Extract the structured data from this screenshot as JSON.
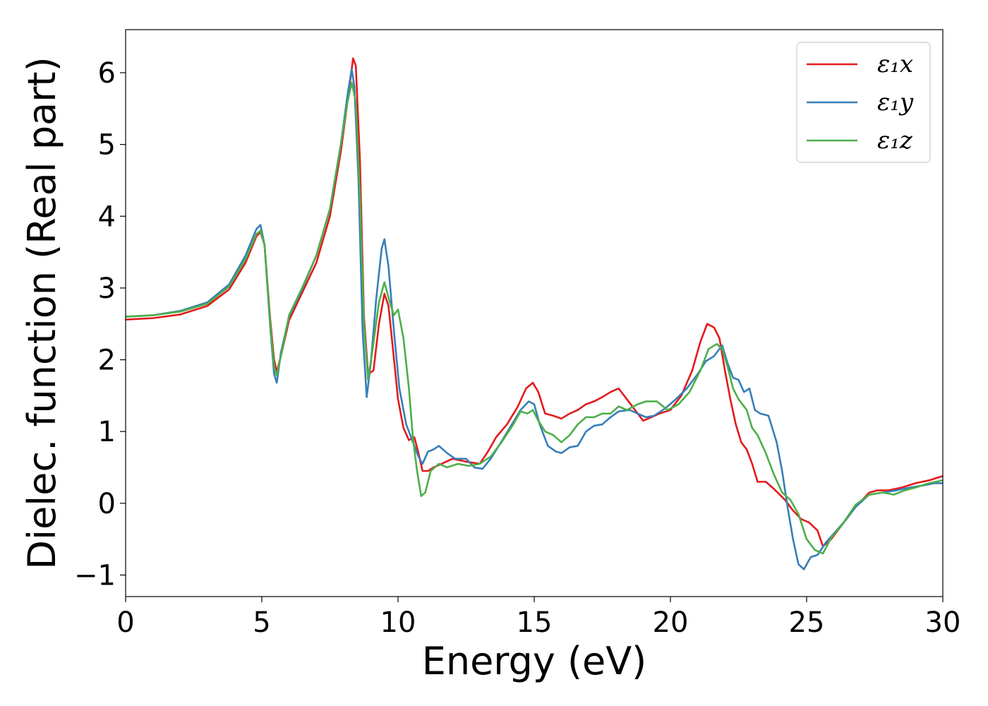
{
  "chart_data": {
    "type": "line",
    "xlabel": "Energy (eV)",
    "ylabel": "Dielec. function (Real part)",
    "xlim": [
      0,
      30
    ],
    "ylim": [
      -1.3,
      6.6
    ],
    "xticks": [
      0,
      5,
      10,
      15,
      20,
      25,
      30
    ],
    "xtick_labels": [
      "0",
      "5",
      "10",
      "15",
      "20",
      "25",
      "30"
    ],
    "yticks": [
      -1,
      0,
      1,
      2,
      3,
      4,
      5,
      6
    ],
    "ytick_labels": [
      "−1",
      "0",
      "1",
      "2",
      "3",
      "4",
      "5",
      "6"
    ],
    "grid": false,
    "legend_position": "top-right",
    "series": [
      {
        "name": "ε₁x",
        "color": "#e41a1c",
        "points": [
          [
            0,
            2.56
          ],
          [
            1,
            2.58
          ],
          [
            2,
            2.63
          ],
          [
            3,
            2.75
          ],
          [
            3.8,
            2.98
          ],
          [
            4.4,
            3.35
          ],
          [
            4.8,
            3.72
          ],
          [
            4.95,
            3.78
          ],
          [
            5.1,
            3.6
          ],
          [
            5.3,
            2.6
          ],
          [
            5.45,
            2.0
          ],
          [
            5.55,
            1.83
          ],
          [
            5.7,
            2.05
          ],
          [
            6.0,
            2.55
          ],
          [
            6.5,
            2.95
          ],
          [
            7.0,
            3.35
          ],
          [
            7.5,
            4.0
          ],
          [
            7.9,
            4.9
          ],
          [
            8.2,
            5.75
          ],
          [
            8.35,
            6.2
          ],
          [
            8.45,
            6.1
          ],
          [
            8.6,
            4.8
          ],
          [
            8.75,
            2.6
          ],
          [
            8.9,
            1.8
          ],
          [
            9.1,
            1.85
          ],
          [
            9.3,
            2.5
          ],
          [
            9.5,
            2.92
          ],
          [
            9.65,
            2.75
          ],
          [
            9.8,
            2.2
          ],
          [
            10.0,
            1.45
          ],
          [
            10.2,
            1.05
          ],
          [
            10.4,
            0.88
          ],
          [
            10.6,
            0.92
          ],
          [
            10.75,
            0.7
          ],
          [
            10.9,
            0.45
          ],
          [
            11.1,
            0.45
          ],
          [
            11.3,
            0.5
          ],
          [
            11.6,
            0.55
          ],
          [
            12.0,
            0.62
          ],
          [
            12.5,
            0.58
          ],
          [
            13.0,
            0.55
          ],
          [
            13.3,
            0.72
          ],
          [
            13.6,
            0.92
          ],
          [
            14.0,
            1.1
          ],
          [
            14.4,
            1.35
          ],
          [
            14.7,
            1.6
          ],
          [
            14.95,
            1.68
          ],
          [
            15.15,
            1.55
          ],
          [
            15.4,
            1.25
          ],
          [
            15.7,
            1.22
          ],
          [
            16.0,
            1.18
          ],
          [
            16.3,
            1.25
          ],
          [
            16.6,
            1.3
          ],
          [
            16.9,
            1.38
          ],
          [
            17.2,
            1.42
          ],
          [
            17.5,
            1.48
          ],
          [
            17.8,
            1.55
          ],
          [
            18.1,
            1.6
          ],
          [
            18.4,
            1.45
          ],
          [
            18.7,
            1.3
          ],
          [
            19.0,
            1.15
          ],
          [
            19.3,
            1.2
          ],
          [
            19.6,
            1.25
          ],
          [
            20.0,
            1.3
          ],
          [
            20.4,
            1.5
          ],
          [
            20.8,
            1.85
          ],
          [
            21.1,
            2.25
          ],
          [
            21.35,
            2.5
          ],
          [
            21.6,
            2.45
          ],
          [
            21.8,
            2.3
          ],
          [
            22.0,
            1.85
          ],
          [
            22.2,
            1.45
          ],
          [
            22.4,
            1.1
          ],
          [
            22.6,
            0.85
          ],
          [
            22.8,
            0.75
          ],
          [
            23.0,
            0.55
          ],
          [
            23.2,
            0.3
          ],
          [
            23.5,
            0.3
          ],
          [
            23.8,
            0.2
          ],
          [
            24.2,
            0.05
          ],
          [
            24.5,
            -0.1
          ],
          [
            24.8,
            -0.22
          ],
          [
            25.1,
            -0.27
          ],
          [
            25.4,
            -0.38
          ],
          [
            25.6,
            -0.6
          ],
          [
            25.9,
            -0.5
          ],
          [
            26.3,
            -0.3
          ],
          [
            26.8,
            -0.05
          ],
          [
            27.3,
            0.15
          ],
          [
            27.6,
            0.18
          ],
          [
            28.0,
            0.18
          ],
          [
            28.5,
            0.22
          ],
          [
            29.0,
            0.28
          ],
          [
            29.5,
            0.32
          ],
          [
            30.0,
            0.38
          ]
        ]
      },
      {
        "name": "ε₁y",
        "color": "#377eb8",
        "points": [
          [
            0,
            2.6
          ],
          [
            1,
            2.62
          ],
          [
            2,
            2.68
          ],
          [
            3,
            2.8
          ],
          [
            3.8,
            3.05
          ],
          [
            4.4,
            3.45
          ],
          [
            4.8,
            3.82
          ],
          [
            4.95,
            3.88
          ],
          [
            5.1,
            3.6
          ],
          [
            5.3,
            2.5
          ],
          [
            5.45,
            1.8
          ],
          [
            5.55,
            1.68
          ],
          [
            5.7,
            2.1
          ],
          [
            6.0,
            2.6
          ],
          [
            6.5,
            3.0
          ],
          [
            7.0,
            3.45
          ],
          [
            7.5,
            4.1
          ],
          [
            7.9,
            5.0
          ],
          [
            8.15,
            5.7
          ],
          [
            8.3,
            6.05
          ],
          [
            8.4,
            5.8
          ],
          [
            8.55,
            4.5
          ],
          [
            8.7,
            2.4
          ],
          [
            8.85,
            1.48
          ],
          [
            9.0,
            1.95
          ],
          [
            9.2,
            2.85
          ],
          [
            9.4,
            3.55
          ],
          [
            9.5,
            3.68
          ],
          [
            9.65,
            3.3
          ],
          [
            9.85,
            2.4
          ],
          [
            10.05,
            1.6
          ],
          [
            10.3,
            1.1
          ],
          [
            10.55,
            0.85
          ],
          [
            10.75,
            0.65
          ],
          [
            10.9,
            0.55
          ],
          [
            11.1,
            0.72
          ],
          [
            11.3,
            0.75
          ],
          [
            11.5,
            0.8
          ],
          [
            11.8,
            0.7
          ],
          [
            12.1,
            0.62
          ],
          [
            12.5,
            0.62
          ],
          [
            12.8,
            0.5
          ],
          [
            13.1,
            0.48
          ],
          [
            13.4,
            0.62
          ],
          [
            13.7,
            0.8
          ],
          [
            14.1,
            1.05
          ],
          [
            14.5,
            1.3
          ],
          [
            14.8,
            1.42
          ],
          [
            15.0,
            1.38
          ],
          [
            15.2,
            1.1
          ],
          [
            15.5,
            0.8
          ],
          [
            15.8,
            0.72
          ],
          [
            16.0,
            0.7
          ],
          [
            16.3,
            0.78
          ],
          [
            16.6,
            0.8
          ],
          [
            16.9,
            1.0
          ],
          [
            17.2,
            1.08
          ],
          [
            17.5,
            1.1
          ],
          [
            17.8,
            1.2
          ],
          [
            18.1,
            1.28
          ],
          [
            18.5,
            1.3
          ],
          [
            18.8,
            1.25
          ],
          [
            19.1,
            1.2
          ],
          [
            19.4,
            1.22
          ],
          [
            19.8,
            1.32
          ],
          [
            20.2,
            1.45
          ],
          [
            20.6,
            1.6
          ],
          [
            21.0,
            1.8
          ],
          [
            21.3,
            1.98
          ],
          [
            21.6,
            2.05
          ],
          [
            21.9,
            2.2
          ],
          [
            22.1,
            1.95
          ],
          [
            22.3,
            1.75
          ],
          [
            22.5,
            1.72
          ],
          [
            22.7,
            1.55
          ],
          [
            22.9,
            1.6
          ],
          [
            23.1,
            1.3
          ],
          [
            23.3,
            1.25
          ],
          [
            23.6,
            1.22
          ],
          [
            23.9,
            0.85
          ],
          [
            24.1,
            0.45
          ],
          [
            24.3,
            -0.05
          ],
          [
            24.5,
            -0.5
          ],
          [
            24.7,
            -0.85
          ],
          [
            24.9,
            -0.92
          ],
          [
            25.15,
            -0.75
          ],
          [
            25.4,
            -0.72
          ],
          [
            25.7,
            -0.55
          ],
          [
            26.0,
            -0.42
          ],
          [
            26.4,
            -0.25
          ],
          [
            26.8,
            -0.05
          ],
          [
            27.3,
            0.12
          ],
          [
            27.8,
            0.15
          ],
          [
            28.3,
            0.18
          ],
          [
            28.8,
            0.22
          ],
          [
            29.3,
            0.25
          ],
          [
            29.7,
            0.28
          ],
          [
            30.0,
            0.28
          ]
        ]
      },
      {
        "name": "ε₁z",
        "color": "#4daf4a",
        "points": [
          [
            0,
            2.6
          ],
          [
            1,
            2.62
          ],
          [
            2,
            2.67
          ],
          [
            3,
            2.78
          ],
          [
            3.8,
            3.02
          ],
          [
            4.4,
            3.4
          ],
          [
            4.8,
            3.75
          ],
          [
            4.95,
            3.8
          ],
          [
            5.1,
            3.6
          ],
          [
            5.3,
            2.55
          ],
          [
            5.45,
            1.9
          ],
          [
            5.55,
            1.78
          ],
          [
            5.7,
            2.05
          ],
          [
            6.0,
            2.62
          ],
          [
            6.5,
            3.02
          ],
          [
            7.0,
            3.45
          ],
          [
            7.5,
            4.1
          ],
          [
            7.9,
            5.0
          ],
          [
            8.15,
            5.6
          ],
          [
            8.3,
            5.86
          ],
          [
            8.45,
            5.6
          ],
          [
            8.6,
            4.3
          ],
          [
            8.75,
            2.5
          ],
          [
            8.9,
            1.72
          ],
          [
            9.05,
            2.1
          ],
          [
            9.3,
            2.8
          ],
          [
            9.5,
            3.08
          ],
          [
            9.7,
            2.8
          ],
          [
            9.85,
            2.62
          ],
          [
            10.0,
            2.7
          ],
          [
            10.2,
            2.3
          ],
          [
            10.4,
            1.6
          ],
          [
            10.55,
            0.9
          ],
          [
            10.7,
            0.45
          ],
          [
            10.85,
            0.1
          ],
          [
            11.0,
            0.15
          ],
          [
            11.2,
            0.45
          ],
          [
            11.5,
            0.55
          ],
          [
            11.8,
            0.5
          ],
          [
            12.2,
            0.55
          ],
          [
            12.6,
            0.52
          ],
          [
            13.0,
            0.55
          ],
          [
            13.4,
            0.65
          ],
          [
            13.8,
            0.85
          ],
          [
            14.2,
            1.08
          ],
          [
            14.5,
            1.28
          ],
          [
            14.75,
            1.25
          ],
          [
            14.95,
            1.3
          ],
          [
            15.15,
            1.15
          ],
          [
            15.4,
            1.0
          ],
          [
            15.7,
            0.95
          ],
          [
            16.0,
            0.85
          ],
          [
            16.3,
            0.95
          ],
          [
            16.6,
            1.1
          ],
          [
            16.9,
            1.2
          ],
          [
            17.2,
            1.2
          ],
          [
            17.5,
            1.25
          ],
          [
            17.8,
            1.25
          ],
          [
            18.1,
            1.35
          ],
          [
            18.4,
            1.3
          ],
          [
            18.8,
            1.38
          ],
          [
            19.1,
            1.42
          ],
          [
            19.5,
            1.42
          ],
          [
            19.9,
            1.3
          ],
          [
            20.3,
            1.38
          ],
          [
            20.7,
            1.55
          ],
          [
            21.1,
            1.85
          ],
          [
            21.4,
            2.15
          ],
          [
            21.7,
            2.22
          ],
          [
            21.9,
            2.15
          ],
          [
            22.1,
            1.9
          ],
          [
            22.3,
            1.6
          ],
          [
            22.5,
            1.45
          ],
          [
            22.8,
            1.3
          ],
          [
            23.0,
            1.05
          ],
          [
            23.2,
            0.95
          ],
          [
            23.5,
            0.7
          ],
          [
            23.8,
            0.4
          ],
          [
            24.1,
            0.15
          ],
          [
            24.4,
            0.05
          ],
          [
            24.7,
            -0.15
          ],
          [
            25.0,
            -0.5
          ],
          [
            25.3,
            -0.65
          ],
          [
            25.6,
            -0.7
          ],
          [
            25.9,
            -0.48
          ],
          [
            26.3,
            -0.3
          ],
          [
            26.8,
            -0.02
          ],
          [
            27.3,
            0.12
          ],
          [
            27.8,
            0.15
          ],
          [
            28.2,
            0.12
          ],
          [
            28.6,
            0.18
          ],
          [
            29.0,
            0.22
          ],
          [
            29.5,
            0.28
          ],
          [
            30.0,
            0.32
          ]
        ]
      }
    ]
  }
}
